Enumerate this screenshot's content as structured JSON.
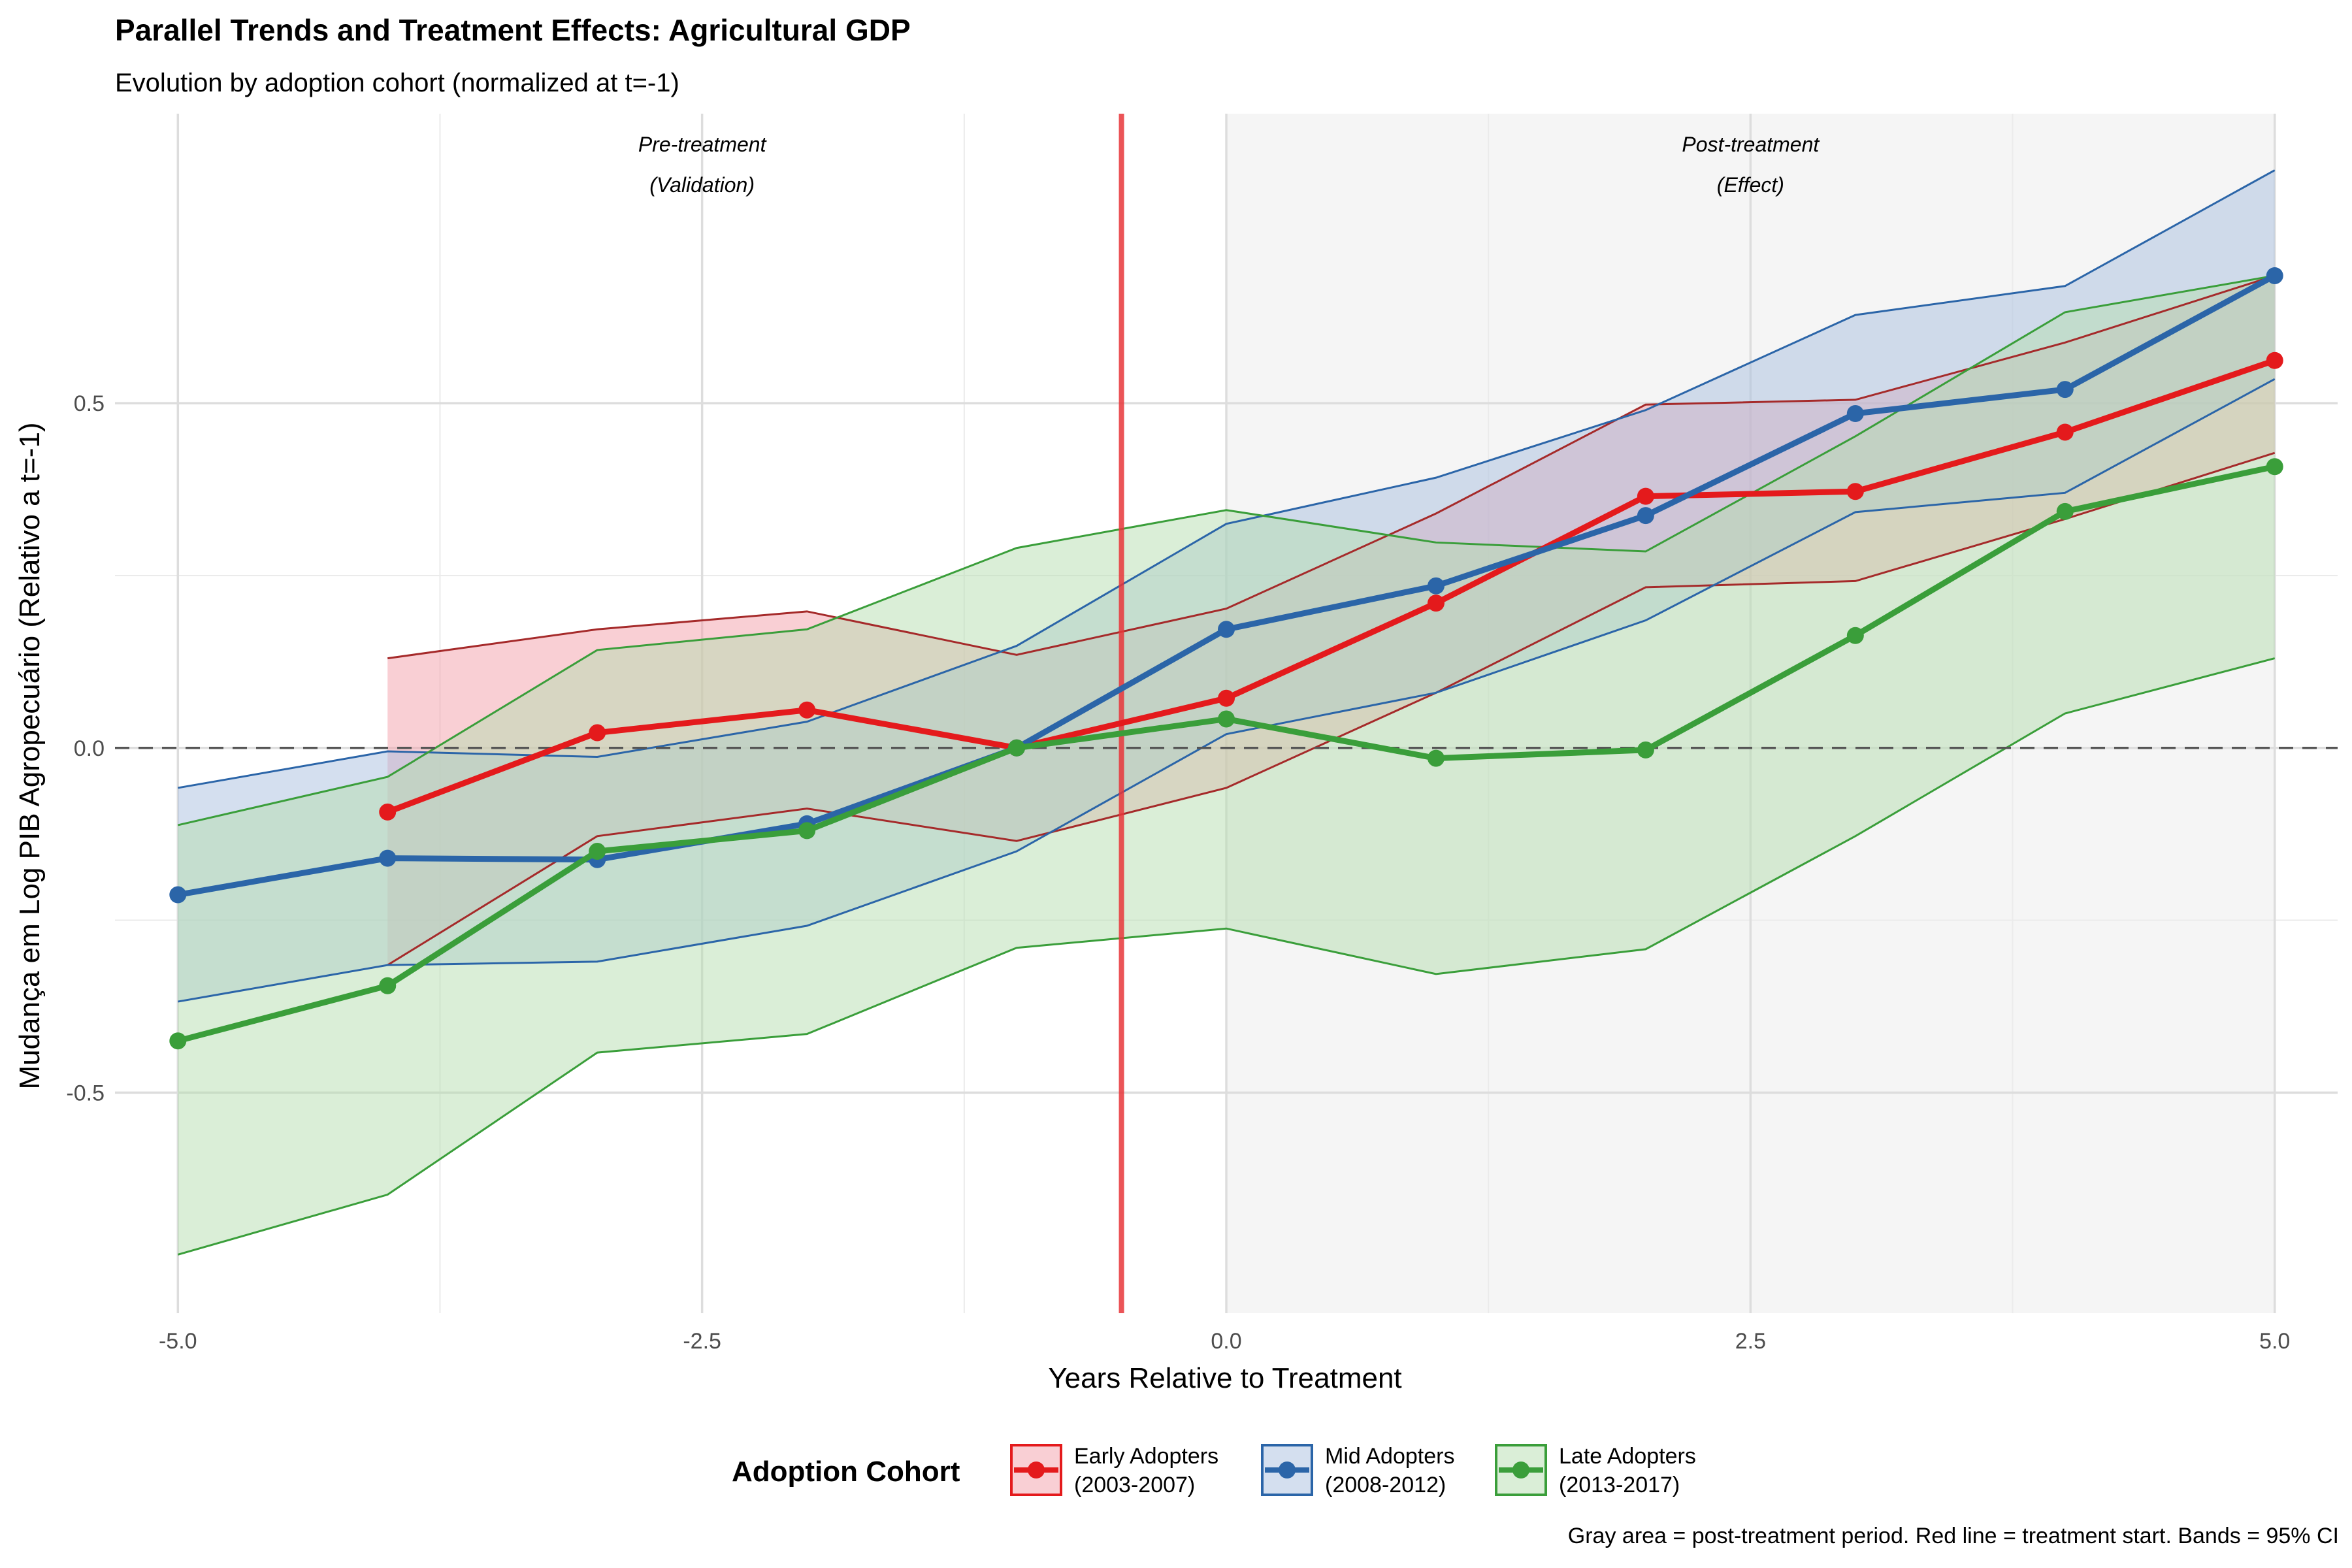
{
  "chart_data": {
    "type": "line",
    "title": "Parallel Trends and Treatment Effects: Agricultural GDP",
    "subtitle": "Evolution by adoption cohort (normalized at t=-1)",
    "xlabel": "Years Relative to Treatment",
    "ylabel": "Mudança em Log PIB Agropecuário (Relativo a t=-1)",
    "caption": "Gray area = post-treatment period. Red line = treatment start. Bands = 95% CI",
    "xlim": [
      -5.3,
      5.3
    ],
    "ylim": [
      -0.82,
      0.92
    ],
    "x_ticks": [
      -5.0,
      -2.5,
      0.0,
      2.5,
      5.0
    ],
    "x_tick_labels": [
      "-5.0",
      "-2.5",
      "0.0",
      "2.5",
      "5.0"
    ],
    "y_ticks": [
      -0.5,
      0.0,
      0.5
    ],
    "y_tick_labels": [
      "-0.5",
      "0.0",
      "0.5"
    ],
    "treatment_line_x": -0.5,
    "post_region": [
      0,
      5
    ],
    "annotations": [
      {
        "x": -2.5,
        "y": 0.865,
        "lines": [
          "Pre-treatment",
          "(Validation)"
        ]
      },
      {
        "x": 2.5,
        "y": 0.865,
        "lines": [
          "Post-treatment",
          "(Effect)"
        ]
      }
    ],
    "legend": {
      "title": "Adoption Cohort",
      "position": "bottom",
      "entries": [
        {
          "line1": "Early Adopters",
          "line2": "(2003-2007)"
        },
        {
          "line1": "Mid Adopters",
          "line2": "(2008-2012)"
        },
        {
          "line1": "Late Adopters",
          "line2": "(2013-2017)"
        }
      ]
    },
    "series": [
      {
        "name": "Early Adopters",
        "color": "#E41A1C",
        "band_color": "#F4A0AA",
        "band_line_color": "#A52A2A",
        "x": [
          -4,
          -3,
          -2,
          -1,
          0,
          1,
          2,
          3,
          4,
          5
        ],
        "values": [
          -0.093,
          0.022,
          0.055,
          0.0,
          0.072,
          0.21,
          0.365,
          0.372,
          0.458,
          0.562
        ],
        "lower": [
          -0.315,
          -0.128,
          -0.088,
          -0.135,
          -0.058,
          0.08,
          0.233,
          0.242,
          0.332,
          0.428
        ],
        "upper": [
          0.13,
          0.172,
          0.198,
          0.135,
          0.202,
          0.34,
          0.498,
          0.505,
          0.588,
          0.685
        ]
      },
      {
        "name": "Mid Adopters",
        "color": "#2B65A8",
        "band_color": "#A9C0E0",
        "band_line_color": "#2B65A8",
        "x": [
          -5,
          -4,
          -3,
          -2,
          -1,
          0,
          1,
          2,
          3,
          4,
          5
        ],
        "values": [
          -0.213,
          -0.16,
          -0.162,
          -0.11,
          0.0,
          0.172,
          0.235,
          0.337,
          0.485,
          0.52,
          0.685
        ],
        "lower": [
          -0.368,
          -0.315,
          -0.31,
          -0.258,
          -0.15,
          0.02,
          0.08,
          0.185,
          0.342,
          0.37,
          0.535
        ],
        "upper": [
          -0.058,
          -0.005,
          -0.013,
          0.038,
          0.148,
          0.325,
          0.392,
          0.49,
          0.628,
          0.67,
          0.838
        ]
      },
      {
        "name": "Late Adopters",
        "color": "#3A9E3A",
        "band_color": "#B5DDB0",
        "band_line_color": "#3A9E3A",
        "x": [
          -5,
          -4,
          -3,
          -2,
          -1,
          0,
          1,
          2,
          3,
          4,
          5
        ],
        "values": [
          -0.425,
          -0.345,
          -0.15,
          -0.12,
          0.0,
          0.042,
          -0.015,
          -0.003,
          0.163,
          0.343,
          0.408
        ],
        "lower": [
          -0.735,
          -0.648,
          -0.442,
          -0.415,
          -0.29,
          -0.262,
          -0.328,
          -0.292,
          -0.128,
          0.05,
          0.13
        ],
        "upper": [
          -0.112,
          -0.042,
          0.142,
          0.172,
          0.29,
          0.345,
          0.298,
          0.285,
          0.452,
          0.632,
          0.685
        ]
      }
    ]
  }
}
